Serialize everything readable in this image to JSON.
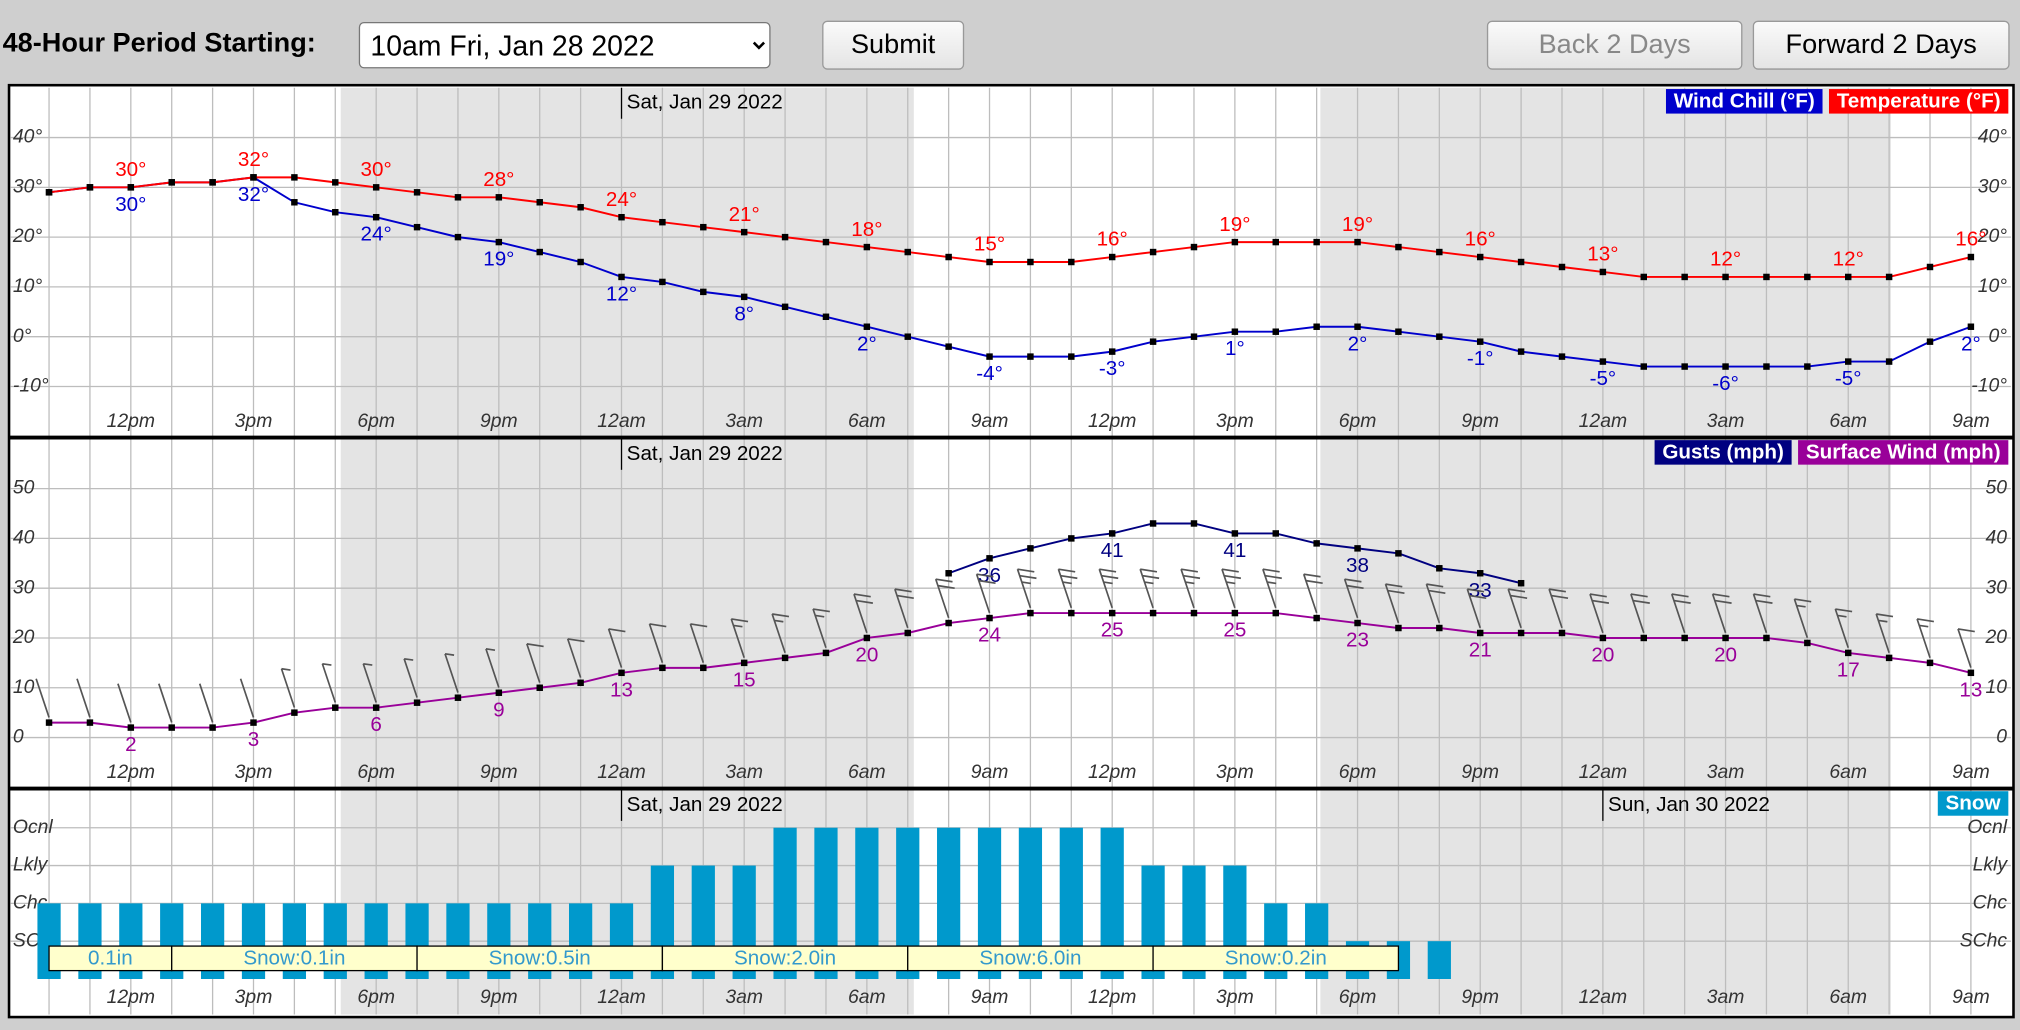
{
  "controls": {
    "period_label": "48-Hour Period Starting:",
    "period_options": [
      "10am Fri, Jan 28 2022"
    ],
    "submit": "Submit",
    "back": "Back 2 Days",
    "forward": "Forward 2 Days"
  },
  "chart_data": [
    {
      "type": "line",
      "categories": [
        null,
        null,
        "12pm",
        null,
        null,
        "3pm",
        null,
        null,
        "6pm",
        null,
        null,
        "9pm",
        null,
        null,
        "12am",
        null,
        null,
        "3am",
        null,
        null,
        "6am",
        null,
        null,
        "9am",
        null,
        null,
        "12pm",
        null,
        null,
        "3pm",
        null,
        null,
        "6pm",
        null,
        null,
        "9pm",
        null,
        null,
        "12am",
        null,
        null,
        "3am",
        null,
        null,
        "6am",
        null,
        null,
        "9am"
      ],
      "date_labels": [
        null,
        null,
        null,
        null,
        null,
        null,
        null,
        null,
        null,
        null,
        null,
        null,
        null,
        null,
        "Sat, Jan 29 2022",
        null,
        null,
        null,
        null,
        null,
        null,
        null,
        null,
        null,
        null,
        null,
        null,
        null,
        null,
        null,
        null,
        null,
        null,
        null,
        null,
        null,
        null,
        null,
        null,
        null,
        null,
        null,
        null,
        null,
        null,
        null,
        null,
        null
      ],
      "ylim": [
        -20,
        50
      ],
      "yticks": [
        {
          "value": 40,
          "label": "40°"
        },
        {
          "value": 30,
          "label": "30°"
        },
        {
          "value": 20,
          "label": "20°"
        },
        {
          "value": 10,
          "label": "10°"
        },
        {
          "value": 0,
          "label": "0°"
        },
        {
          "value": -10,
          "label": "-10°"
        }
      ],
      "grid": true,
      "series": [
        {
          "name": "Wind Chill (°F)",
          "color": "#0000cc",
          "label_position": "below",
          "values": [
            29,
            30,
            30,
            31,
            31,
            32,
            27,
            25,
            24,
            22,
            20,
            19,
            17,
            15,
            12,
            11,
            9,
            8,
            6,
            4,
            2,
            0,
            -2,
            -4,
            -4,
            -4,
            -3,
            -1,
            0,
            1,
            1,
            2,
            2,
            1,
            0,
            -1,
            -3,
            -4,
            -5,
            -6,
            -6,
            -6,
            -6,
            -6,
            -5,
            -5,
            -1,
            2
          ],
          "value_labels": [
            null,
            null,
            "30°",
            null,
            null,
            "32°",
            null,
            null,
            "24°",
            null,
            null,
            "19°",
            null,
            null,
            "12°",
            null,
            null,
            "8°",
            null,
            null,
            "2°",
            null,
            null,
            "-4°",
            null,
            null,
            "-3°",
            null,
            null,
            "1°",
            null,
            null,
            "2°",
            null,
            null,
            "-1°",
            null,
            null,
            "-5°",
            null,
            null,
            "-6°",
            null,
            null,
            "-5°",
            null,
            null,
            "2°"
          ]
        },
        {
          "name": "Temperature (°F)",
          "color": "#ff0000",
          "label_position": "above",
          "values": [
            29,
            30,
            30,
            31,
            31,
            32,
            32,
            31,
            30,
            29,
            28,
            28,
            27,
            26,
            24,
            23,
            22,
            21,
            20,
            19,
            18,
            17,
            16,
            15,
            15,
            15,
            16,
            17,
            18,
            19,
            19,
            19,
            19,
            18,
            17,
            16,
            15,
            14,
            13,
            12,
            12,
            12,
            12,
            12,
            12,
            12,
            14,
            16
          ],
          "value_labels": [
            null,
            null,
            "30°",
            null,
            null,
            "32°",
            null,
            null,
            "30°",
            null,
            null,
            "28°",
            null,
            null,
            "24°",
            null,
            null,
            "21°",
            null,
            null,
            "18°",
            null,
            null,
            "15°",
            null,
            null,
            "16°",
            null,
            null,
            "19°",
            null,
            null,
            "19°",
            null,
            null,
            "16°",
            null,
            null,
            "13°",
            null,
            null,
            "12°",
            null,
            null,
            "12°",
            null,
            null,
            "16°"
          ]
        }
      ]
    },
    {
      "type": "line",
      "categories": [
        null,
        null,
        "12pm",
        null,
        null,
        "3pm",
        null,
        null,
        "6pm",
        null,
        null,
        "9pm",
        null,
        null,
        "12am",
        null,
        null,
        "3am",
        null,
        null,
        "6am",
        null,
        null,
        "9am",
        null,
        null,
        "12pm",
        null,
        null,
        "3pm",
        null,
        null,
        "6pm",
        null,
        null,
        "9pm",
        null,
        null,
        "12am",
        null,
        null,
        "3am",
        null,
        null,
        "6am",
        null,
        null,
        "9am"
      ],
      "date_labels": [
        null,
        null,
        null,
        null,
        null,
        null,
        null,
        null,
        null,
        null,
        null,
        null,
        null,
        null,
        "Sat, Jan 29 2022",
        null,
        null,
        null,
        null,
        null,
        null,
        null,
        null,
        null,
        null,
        null,
        null,
        null,
        null,
        null,
        null,
        null,
        null,
        null,
        null,
        null,
        null,
        null,
        null,
        null,
        null,
        null,
        null,
        null,
        null,
        null,
        null,
        null
      ],
      "ylim": [
        -10,
        60
      ],
      "yticks": [
        50,
        40,
        30,
        20,
        10,
        0
      ],
      "grid": true,
      "series": [
        {
          "name": "Gusts (mph)",
          "color": "#000080",
          "label_position": "below",
          "values": [
            null,
            null,
            null,
            null,
            null,
            null,
            null,
            null,
            null,
            null,
            null,
            null,
            null,
            null,
            null,
            null,
            null,
            null,
            null,
            null,
            null,
            null,
            33,
            36,
            38,
            40,
            41,
            43,
            43,
            41,
            41,
            39,
            38,
            37,
            34,
            33,
            31,
            null,
            null,
            null,
            null,
            null,
            null,
            null,
            null,
            null,
            null,
            null
          ]
        },
        {
          "name": "Surface Wind (mph)",
          "color": "#990099",
          "label_position": "below",
          "barbs": true,
          "values": [
            3,
            3,
            2,
            2,
            2,
            3,
            5,
            6,
            6,
            7,
            8,
            9,
            10,
            11,
            13,
            14,
            14,
            15,
            16,
            17,
            20,
            21,
            23,
            24,
            25,
            25,
            25,
            25,
            25,
            25,
            25,
            24,
            23,
            22,
            22,
            21,
            21,
            21,
            20,
            20,
            20,
            20,
            20,
            19,
            17,
            16,
            15,
            13
          ]
        }
      ]
    },
    {
      "type": "bar",
      "categories": [
        null,
        null,
        "12pm",
        null,
        null,
        "3pm",
        null,
        null,
        "6pm",
        null,
        null,
        "9pm",
        null,
        null,
        "12am",
        null,
        null,
        "3am",
        null,
        null,
        "6am",
        null,
        null,
        "9am",
        null,
        null,
        "12pm",
        null,
        null,
        "3pm",
        null,
        null,
        "6pm",
        null,
        null,
        "9pm",
        null,
        null,
        "12am",
        null,
        null,
        "3am",
        null,
        null,
        "6am",
        null,
        null,
        "9am"
      ],
      "date_labels": [
        null,
        null,
        null,
        null,
        null,
        null,
        null,
        null,
        null,
        null,
        null,
        null,
        null,
        null,
        "Sat, Jan 29 2022",
        null,
        null,
        null,
        null,
        null,
        null,
        null,
        null,
        null,
        null,
        null,
        null,
        null,
        null,
        null,
        null,
        null,
        null,
        null,
        null,
        null,
        null,
        null,
        "Sun, Jan 30 2022",
        null,
        null,
        null,
        null,
        null,
        null,
        null,
        null,
        null
      ],
      "ylim": [
        0,
        5
      ],
      "yticks": [
        {
          "value": 4,
          "label": "Ocnl"
        },
        {
          "value": 3,
          "label": "Lkly"
        },
        {
          "value": 2,
          "label": "Chc"
        },
        {
          "value": 1,
          "label": "SChc"
        }
      ],
      "grid": true,
      "series": [
        {
          "name": "Snow",
          "color": "#0099cc",
          "values": [
            2,
            2,
            2,
            2,
            2,
            2,
            2,
            2,
            2,
            2,
            2,
            2,
            2,
            2,
            2,
            3,
            3,
            3,
            4,
            4,
            4,
            4,
            4,
            4,
            4,
            4,
            4,
            3,
            3,
            3,
            2,
            2,
            1,
            1,
            1,
            null,
            null,
            null,
            null,
            null,
            null,
            null,
            null,
            null,
            null,
            null,
            null,
            null
          ]
        }
      ],
      "accumulation": {
        "values": [
          0.1,
          0.1,
          0.5,
          2.0,
          6.0,
          0.2
        ],
        "value_labels": [
          "0.1in",
          "Snow:0.1in",
          "Snow:0.5in",
          "Snow:2.0in",
          "Snow:6.0in",
          "Snow:0.2in"
        ]
      }
    }
  ]
}
